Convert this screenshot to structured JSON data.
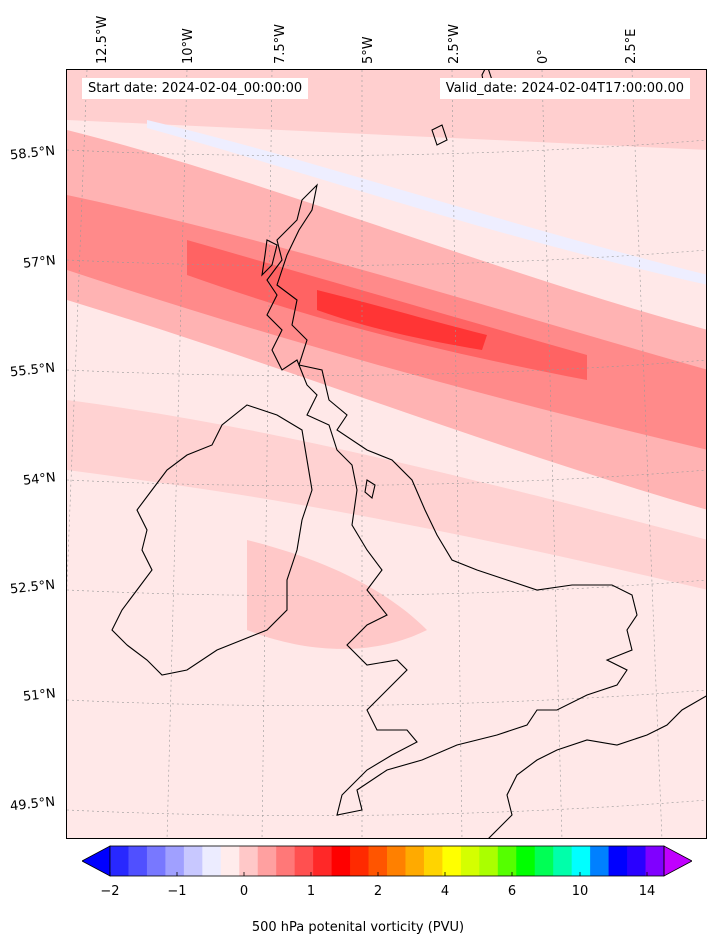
{
  "header": {
    "start_date": "Start date: 2024-02-04_00:00:00",
    "valid_date": "Valid_date: 2024-02-04T17:00:00.00"
  },
  "map": {
    "region": "British Isles",
    "field": "500 hPa potential vorticity",
    "longitude_labels": [
      "12.5°W",
      "10°W",
      "7.5°W",
      "5°W",
      "2.5°W",
      "0°",
      "2.5°E"
    ],
    "latitude_labels": [
      "58.5°N",
      "57°N",
      "55.5°N",
      "54°N",
      "52.5°N",
      "51°N",
      "49.5°N"
    ],
    "coastline_color": "#000000",
    "gridline_style": "dotted grey"
  },
  "colorbar": {
    "label": "500 hPa potenital vorticity (PVU)",
    "ticks": [
      "−2",
      "−1",
      "0",
      "1",
      "2",
      "4",
      "6",
      "10",
      "14"
    ],
    "extend": "both",
    "colors": [
      "#0000ff",
      "#2828ff",
      "#5050ff",
      "#7878ff",
      "#a0a0ff",
      "#c8c8ff",
      "#ececff",
      "#ffecec",
      "#ffc8c8",
      "#ffa0a0",
      "#ff7878",
      "#ff5050",
      "#ff2828",
      "#ff0000",
      "#ff2a00",
      "#ff5500",
      "#ff8000",
      "#ffaa00",
      "#ffd400",
      "#ffff00",
      "#d4ff00",
      "#aaff00",
      "#55ff00",
      "#00ff00",
      "#00ff55",
      "#00ffaa",
      "#00ffff",
      "#0080ff",
      "#0000ff",
      "#2a00ff",
      "#8000ff",
      "#c000ff"
    ]
  }
}
